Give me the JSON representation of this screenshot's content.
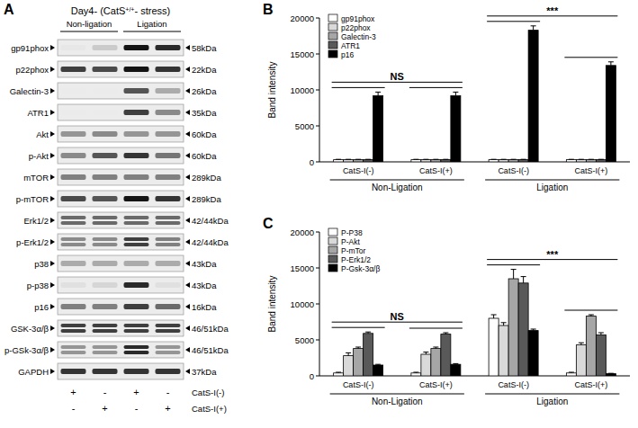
{
  "blot": {
    "panel": "A",
    "title": [
      "Day4- (CatS",
      "+/+",
      "- stress)"
    ],
    "headers": [
      {
        "label": "Non-ligation",
        "lanes": [
          0,
          1
        ]
      },
      {
        "label": "Ligation",
        "lanes": [
          2,
          3
        ]
      }
    ],
    "rows": [
      {
        "label": "gp91phox",
        "kda": "58kDa",
        "bands": [
          0.02,
          0.15,
          1,
          0.9
        ]
      },
      {
        "label": "p22phox",
        "kda": "22kDa",
        "bands": [
          0.8,
          0.75,
          1,
          0.85
        ]
      },
      {
        "label": "Galectin-3",
        "kda": "26kDa",
        "bands": [
          0,
          0,
          0.7,
          0.3
        ]
      },
      {
        "label": "ATR1",
        "kda": "35kDa",
        "bands": [
          0,
          0,
          0.8,
          0.45
        ]
      },
      {
        "label": "Akt",
        "kda": "60kDa",
        "bands": [
          0.4,
          0.45,
          0.4,
          0.4
        ]
      },
      {
        "label": "p-Akt",
        "kda": "60kDa",
        "bands": [
          0.45,
          0.7,
          0.85,
          0.55
        ]
      },
      {
        "label": "mTOR",
        "kda": "289kDa",
        "bands": [
          0.5,
          0.5,
          0.5,
          0.5
        ]
      },
      {
        "label": "p-mTOR",
        "kda": "289kDa",
        "bands": [
          0.75,
          0.7,
          1,
          0.85
        ]
      },
      {
        "label": "Erk1/2",
        "kda": "42/44kDa",
        "bands": [
          0.6,
          0.6,
          0.6,
          0.6
        ]
      },
      {
        "label": "p-Erk1/2",
        "kda": "42/44kDa",
        "bands": [
          0.45,
          0.45,
          0.8,
          0.5
        ]
      },
      {
        "label": "p38",
        "kda": "43kDa",
        "bands": [
          0.3,
          0.3,
          0.3,
          0.3
        ]
      },
      {
        "label": "p-p38",
        "kda": "43kDa",
        "bands": [
          0.05,
          0.1,
          0.9,
          0.05
        ]
      },
      {
        "label": "p16",
        "kda": "16kDa",
        "bands": [
          0.5,
          0.5,
          0.8,
          0.6
        ]
      },
      {
        "label": "GSK-3α/β",
        "kda": "46/51kDa",
        "bands": [
          0.8,
          0.8,
          0.8,
          0.8
        ]
      },
      {
        "label": "p-GSk-3α/β",
        "kda": "46/51kDa",
        "bands": [
          0.4,
          0.4,
          0.9,
          0.4
        ]
      },
      {
        "label": "GAPDH",
        "kda": "37kDa",
        "bands": [
          0.85,
          0.85,
          0.85,
          0.85
        ]
      }
    ],
    "treatments": [
      {
        "label": "CatS-I(-)",
        "signs": [
          "+",
          "-",
          "+",
          "-"
        ]
      },
      {
        "label": "CatS-I(+)",
        "signs": [
          "-",
          "+",
          "-",
          "+"
        ]
      }
    ]
  },
  "chart_data": [
    {
      "type": "bar",
      "title": "B",
      "y_label": "Band intensity",
      "categories": [
        "CatS-I(-)",
        "CatS-I(+)",
        "CatS-I(-)",
        "CatS-I(+)"
      ],
      "supergroups": [
        {
          "label": "Non-Ligation",
          "groups": [
            0,
            1
          ]
        },
        {
          "label": "Ligation",
          "groups": [
            2,
            3
          ]
        }
      ],
      "annotations": [
        {
          "text": "NS",
          "groups": [
            0,
            1
          ]
        },
        {
          "text": "***",
          "groups": [
            2,
            3
          ]
        }
      ],
      "series": [
        {
          "name": "gp91phox",
          "color": "#ffffff",
          "values": [
            300,
            300,
            300,
            300
          ],
          "errors": [
            50,
            50,
            50,
            50
          ]
        },
        {
          "name": "p22phox",
          "color": "#d9d9d9",
          "values": [
            300,
            300,
            300,
            300
          ],
          "errors": [
            50,
            50,
            50,
            50
          ]
        },
        {
          "name": "Galectin-3",
          "color": "#a6a6a6",
          "values": [
            300,
            300,
            300,
            300
          ],
          "errors": [
            50,
            50,
            50,
            50
          ]
        },
        {
          "name": "ATR1",
          "color": "#595959",
          "values": [
            300,
            300,
            300,
            300
          ],
          "errors": [
            50,
            50,
            50,
            50
          ]
        },
        {
          "name": "p16",
          "color": "#000000",
          "values": [
            9200,
            9200,
            18300,
            13400
          ],
          "errors": [
            500,
            500,
            600,
            500
          ]
        }
      ],
      "ylim": [
        0,
        20000
      ],
      "yticks": [
        0,
        5000,
        10000,
        15000,
        20000
      ],
      "legend": "upper-left"
    },
    {
      "type": "bar",
      "title": "C",
      "y_label": "Band intensity",
      "categories": [
        "CatS-I(-)",
        "CatS-I(+)",
        "CatS-I(-)",
        "CatS-I(+)"
      ],
      "supergroups": [
        {
          "label": "Non-Ligation",
          "groups": [
            0,
            1
          ]
        },
        {
          "label": "Ligation",
          "groups": [
            2,
            3
          ]
        }
      ],
      "annotations": [
        {
          "text": "NS",
          "groups": [
            0,
            1
          ]
        },
        {
          "text": "***",
          "groups": [
            2,
            3
          ]
        }
      ],
      "series": [
        {
          "name": "P-P38",
          "color": "#ffffff",
          "values": [
            400,
            400,
            8000,
            400
          ],
          "errors": [
            100,
            100,
            500,
            100
          ]
        },
        {
          "name": "P-Akt",
          "color": "#d9d9d9",
          "values": [
            2800,
            3000,
            7000,
            4300
          ],
          "errors": [
            400,
            300,
            400,
            300
          ]
        },
        {
          "name": "P-mTor",
          "color": "#a6a6a6",
          "values": [
            3800,
            3800,
            13500,
            8300
          ],
          "errors": [
            200,
            200,
            1300,
            200
          ]
        },
        {
          "name": "P-Erk1/2",
          "color": "#595959",
          "values": [
            5900,
            5800,
            12900,
            5700
          ],
          "errors": [
            200,
            200,
            900,
            300
          ]
        },
        {
          "name": "P-Gsk-3α/β",
          "color": "#000000",
          "values": [
            1500,
            1600,
            6300,
            300
          ],
          "errors": [
            100,
            100,
            200,
            50
          ]
        }
      ],
      "ylim": [
        0,
        20000
      ],
      "yticks": [
        0,
        5000,
        10000,
        15000,
        20000
      ],
      "legend": "upper-left"
    }
  ]
}
